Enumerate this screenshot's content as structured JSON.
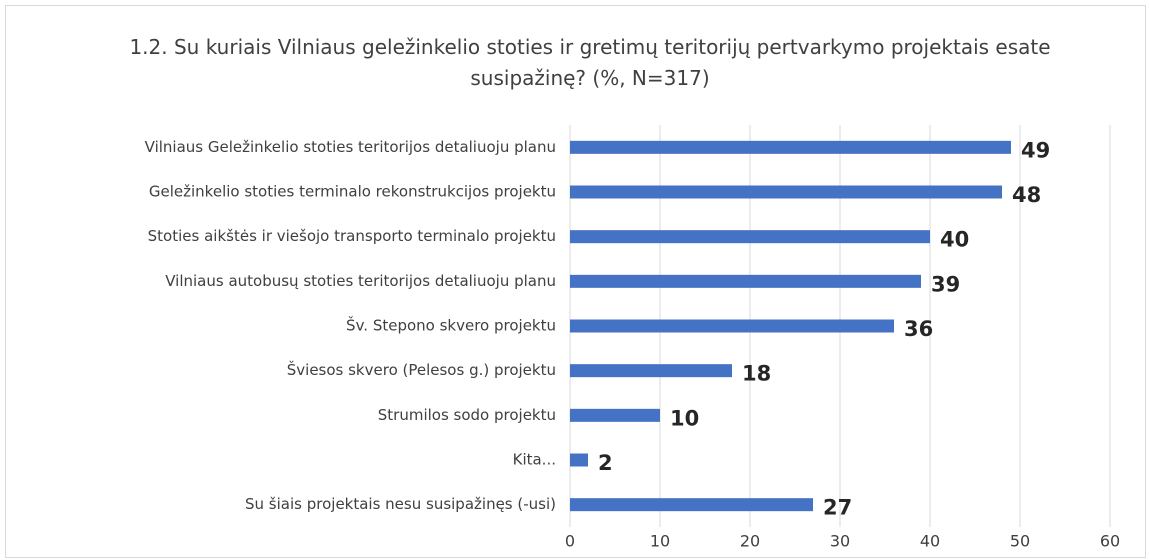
{
  "chart_data": {
    "type": "bar",
    "orientation": "horizontal",
    "title": "1.2. Su kuriais Vilniaus geležinkelio stoties ir gretimų teritorijų pertvarkymo projektais esate susipažinę? (%, N=317)",
    "categories": [
      "Vilniaus Geležinkelio stoties teritorijos detaliuoju planu",
      "Geležinkelio stoties terminalo rekonstrukcijos projektu",
      "Stoties aikštės ir viešojo transporto terminalo projektu",
      "Vilniaus autobusų stoties teritorijos detaliuoju planu",
      "Šv. Stepono skvero projektu",
      "Šviesos skvero (Pelesos g.) projektu",
      "Strumilos sodo projektu",
      "Kita...",
      "Su šiais projektais nesu susipažinęs (-usi)"
    ],
    "values": [
      49,
      48,
      40,
      39,
      36,
      18,
      10,
      2,
      27
    ],
    "color": "#4472c4",
    "xlim": [
      0,
      60
    ],
    "xticks": [
      0,
      10,
      20,
      30,
      40,
      50,
      60
    ],
    "grid": true
  }
}
